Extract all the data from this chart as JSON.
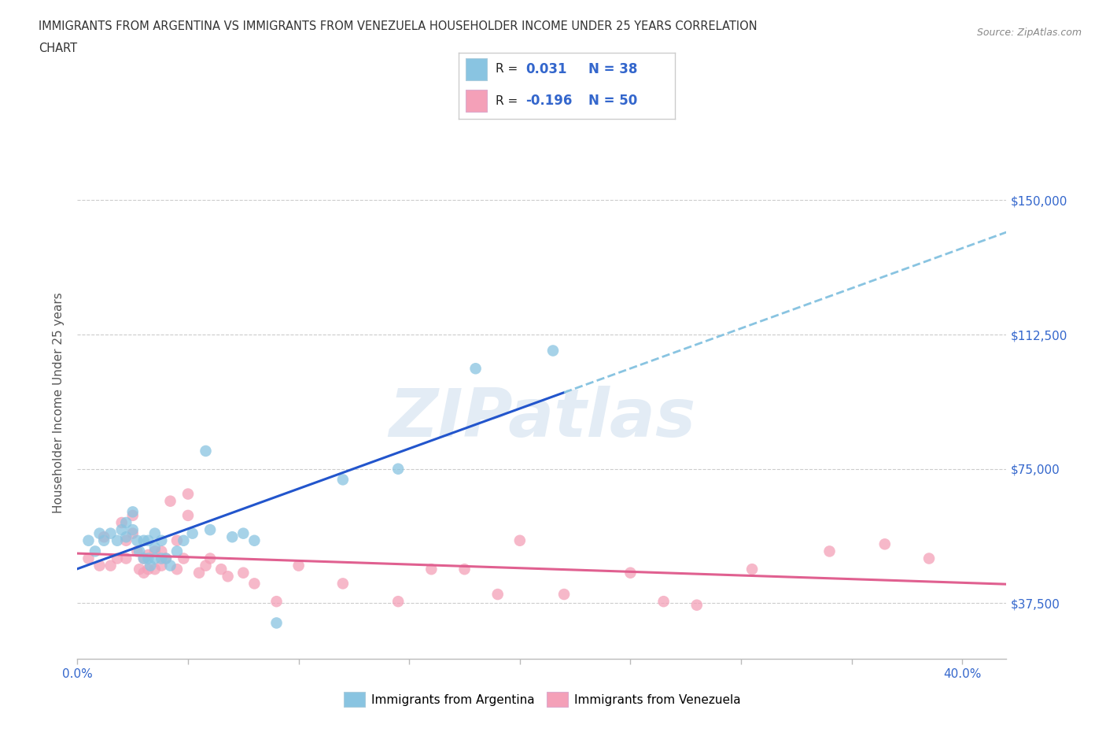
{
  "title_line1": "IMMIGRANTS FROM ARGENTINA VS IMMIGRANTS FROM VENEZUELA HOUSEHOLDER INCOME UNDER 25 YEARS CORRELATION",
  "title_line2": "CHART",
  "source": "Source: ZipAtlas.com",
  "ylabel": "Householder Income Under 25 years",
  "xlim": [
    0.0,
    0.42
  ],
  "ylim": [
    22000,
    165000
  ],
  "yticks": [
    37500,
    75000,
    112500,
    150000
  ],
  "ytick_labels": [
    "$37,500",
    "$75,000",
    "$112,500",
    "$150,000"
  ],
  "xticks": [
    0.0,
    0.05,
    0.1,
    0.15,
    0.2,
    0.25,
    0.3,
    0.35,
    0.4
  ],
  "xtick_labels": [
    "0.0%",
    "",
    "",
    "",
    "",
    "",
    "",
    "",
    "40.0%"
  ],
  "argentina_color": "#89c4e1",
  "venezuela_color": "#f4a0b8",
  "argentina_solid_line_color": "#2255cc",
  "argentina_dashed_line_color": "#89c4e1",
  "venezuela_line_color": "#e06090",
  "R_arg": 0.031,
  "N_arg": 38,
  "R_ven": -0.196,
  "N_ven": 50,
  "watermark": "ZIPatlas",
  "argentina_x": [
    0.005,
    0.008,
    0.01,
    0.012,
    0.015,
    0.018,
    0.02,
    0.022,
    0.022,
    0.025,
    0.025,
    0.027,
    0.028,
    0.03,
    0.03,
    0.032,
    0.032,
    0.033,
    0.035,
    0.035,
    0.035,
    0.038,
    0.038,
    0.04,
    0.042,
    0.045,
    0.048,
    0.052,
    0.058,
    0.06,
    0.07,
    0.075,
    0.08,
    0.09,
    0.12,
    0.145,
    0.18,
    0.215
  ],
  "argentina_y": [
    55000,
    52000,
    57000,
    55000,
    57000,
    55000,
    58000,
    60000,
    56000,
    63000,
    58000,
    55000,
    52000,
    55000,
    50000,
    55000,
    50000,
    48000,
    57000,
    53000,
    50000,
    55000,
    50000,
    50000,
    48000,
    52000,
    55000,
    57000,
    80000,
    58000,
    56000,
    57000,
    55000,
    32000,
    72000,
    75000,
    103000,
    108000
  ],
  "venezuela_x": [
    0.005,
    0.01,
    0.012,
    0.015,
    0.018,
    0.02,
    0.022,
    0.022,
    0.025,
    0.025,
    0.027,
    0.028,
    0.03,
    0.03,
    0.032,
    0.032,
    0.035,
    0.035,
    0.038,
    0.038,
    0.04,
    0.042,
    0.045,
    0.045,
    0.048,
    0.05,
    0.05,
    0.055,
    0.058,
    0.06,
    0.065,
    0.068,
    0.075,
    0.08,
    0.09,
    0.1,
    0.12,
    0.145,
    0.16,
    0.175,
    0.19,
    0.2,
    0.22,
    0.25,
    0.265,
    0.28,
    0.305,
    0.34,
    0.365,
    0.385
  ],
  "venezuela_y": [
    50000,
    48000,
    56000,
    48000,
    50000,
    60000,
    55000,
    50000,
    62000,
    57000,
    52000,
    47000,
    50000,
    46000,
    51000,
    47000,
    52000,
    47000,
    52000,
    48000,
    50000,
    66000,
    47000,
    55000,
    50000,
    68000,
    62000,
    46000,
    48000,
    50000,
    47000,
    45000,
    46000,
    43000,
    38000,
    48000,
    43000,
    38000,
    47000,
    47000,
    40000,
    55000,
    40000,
    46000,
    38000,
    37000,
    47000,
    52000,
    54000,
    50000
  ]
}
